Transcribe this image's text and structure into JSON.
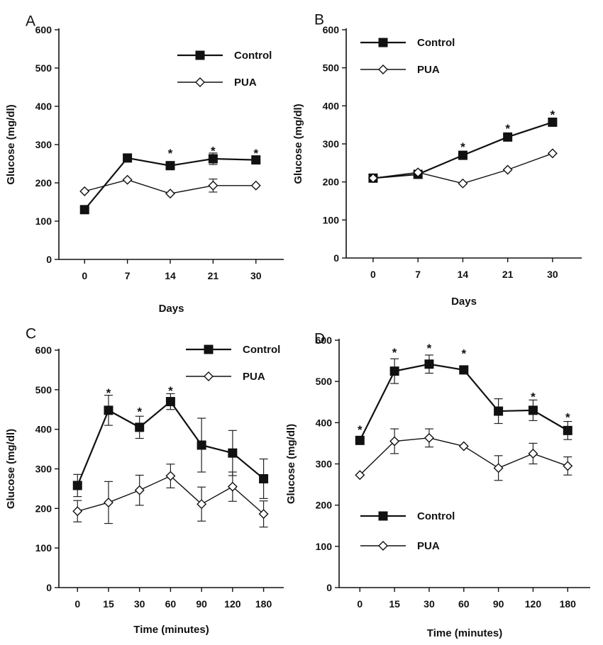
{
  "chart_data": [
    {
      "panel": "A",
      "type": "line",
      "categories": [
        "0",
        "7",
        "14",
        "21",
        "30"
      ],
      "xlabel": "Days",
      "ylabel": "Glucose (mg/dl)",
      "ylim": [
        0,
        600
      ],
      "yticks": [
        "0",
        "100",
        "200",
        "300",
        "400",
        "500",
        "600"
      ],
      "legend_position": "top-right",
      "grid": false,
      "series": [
        {
          "name": "Control",
          "marker": "filled-square",
          "values": [
            130,
            265,
            245,
            263,
            260
          ],
          "errors": [
            0,
            0,
            0,
            15,
            0
          ]
        },
        {
          "name": "PUA",
          "marker": "open-diamond",
          "values": [
            178,
            208,
            172,
            193,
            193
          ],
          "errors": [
            0,
            0,
            0,
            17,
            0
          ]
        }
      ],
      "annotations": [
        {
          "category_index": 2,
          "text": "*",
          "y": 285
        },
        {
          "category_index": 3,
          "text": "*",
          "y": 292
        },
        {
          "category_index": 4,
          "text": "*",
          "y": 285
        }
      ]
    },
    {
      "panel": "B",
      "type": "line",
      "categories": [
        "0",
        "7",
        "14",
        "21",
        "30"
      ],
      "xlabel": "Days",
      "ylabel": "Glucose (mg/dl)",
      "ylim": [
        0,
        600
      ],
      "yticks": [
        "0",
        "100",
        "200",
        "300",
        "400",
        "500",
        "600"
      ],
      "legend_position": "top-left",
      "grid": false,
      "series": [
        {
          "name": "Control",
          "marker": "filled-square",
          "values": [
            210,
            220,
            270,
            318,
            357
          ],
          "errors": [
            0,
            0,
            0,
            0,
            0
          ]
        },
        {
          "name": "PUA",
          "marker": "open-diamond",
          "values": [
            210,
            225,
            196,
            232,
            275
          ],
          "errors": [
            0,
            0,
            0,
            0,
            0
          ]
        }
      ],
      "annotations": [
        {
          "category_index": 2,
          "text": "*",
          "y": 300
        },
        {
          "category_index": 3,
          "text": "*",
          "y": 348
        },
        {
          "category_index": 4,
          "text": "*",
          "y": 385
        }
      ]
    },
    {
      "panel": "C",
      "type": "line",
      "categories": [
        "0",
        "15",
        "30",
        "60",
        "90",
        "120",
        "180"
      ],
      "xlabel": "Time (minutes)",
      "ylabel": "Glucose (mg/dl)",
      "ylim": [
        0,
        600
      ],
      "yticks": [
        "0",
        "100",
        "200",
        "300",
        "400",
        "500",
        "600"
      ],
      "legend_position": "top-right",
      "grid": false,
      "series": [
        {
          "name": "Control",
          "marker": "filled-square",
          "values": [
            258,
            448,
            405,
            470,
            360,
            340,
            275
          ],
          "errors": [
            28,
            38,
            28,
            20,
            68,
            57,
            50
          ]
        },
        {
          "name": "PUA",
          "marker": "open-diamond",
          "values": [
            193,
            215,
            246,
            282,
            211,
            255,
            186
          ],
          "errors": [
            27,
            53,
            38,
            30,
            43,
            37,
            33
          ]
        }
      ],
      "annotations": [
        {
          "category_index": 1,
          "text": "*",
          "y": 500
        },
        {
          "category_index": 2,
          "text": "*",
          "y": 452
        },
        {
          "category_index": 3,
          "text": "*",
          "y": 505
        }
      ]
    },
    {
      "panel": "D",
      "type": "line",
      "categories": [
        "0",
        "15",
        "30",
        "60",
        "90",
        "120",
        "180"
      ],
      "xlabel": "Time (minutes)",
      "ylabel": "Glucose (mg/dl)",
      "ylim": [
        0,
        600
      ],
      "yticks": [
        "0",
        "100",
        "200",
        "300",
        "400",
        "500",
        "600"
      ],
      "legend_position": "bottom-left",
      "grid": false,
      "series": [
        {
          "name": "Control",
          "marker": "filled-square",
          "values": [
            357,
            525,
            542,
            528,
            428,
            430,
            381
          ],
          "errors": [
            0,
            30,
            22,
            0,
            30,
            25,
            22
          ]
        },
        {
          "name": "PUA",
          "marker": "open-diamond",
          "values": [
            273,
            355,
            363,
            343,
            290,
            325,
            295
          ],
          "errors": [
            0,
            30,
            22,
            0,
            30,
            25,
            22
          ]
        }
      ],
      "annotations": [
        {
          "category_index": 0,
          "text": "*",
          "y": 390
        },
        {
          "category_index": 1,
          "text": "*",
          "y": 578
        },
        {
          "category_index": 2,
          "text": "*",
          "y": 588
        },
        {
          "category_index": 3,
          "text": "*",
          "y": 575
        },
        {
          "category_index": 5,
          "text": "*",
          "y": 470
        },
        {
          "category_index": 6,
          "text": "*",
          "y": 420
        }
      ]
    }
  ]
}
